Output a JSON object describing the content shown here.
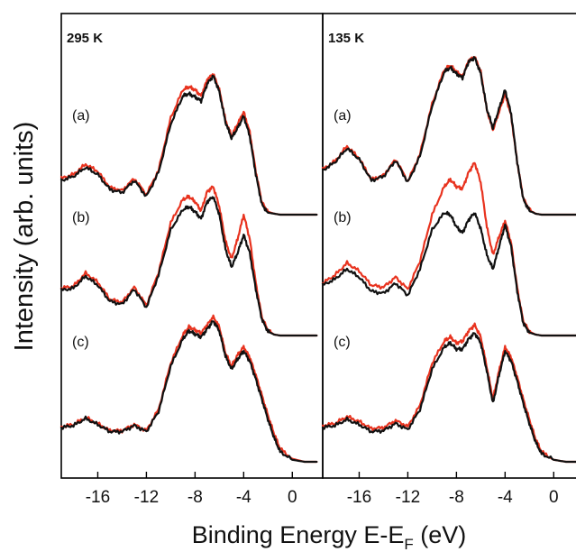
{
  "figure": {
    "ylabel": "Intensity (arb. units)",
    "xlabel_main": "Binding Energy E-E",
    "xlabel_sub": "F",
    "xlabel_tail": " (eV)"
  },
  "colors": {
    "black_trace": "#111111",
    "red_trace": "#e8331f",
    "frame": "#000000"
  },
  "chart_data": [
    {
      "type": "line",
      "panel": "left",
      "temperature_label": "295 K",
      "xlim": [
        -19,
        2.5
      ],
      "xticks": [
        -16,
        -12,
        -8,
        -4,
        0
      ],
      "xtick_labels": [
        "-16",
        "-12",
        "-8",
        "-4",
        "0"
      ],
      "x_inverted": false,
      "y_ticks_shown": false,
      "spectra": [
        {
          "label": "(a)",
          "base": 0.0,
          "x": [
            -19,
            -18,
            -17,
            -16,
            -15,
            -14,
            -13,
            -12,
            -11,
            -10,
            -9,
            -8.5,
            -8,
            -7.5,
            -7,
            -6.5,
            -6,
            -5.5,
            -5,
            -4.5,
            -4,
            -3.5,
            -3,
            -2.5,
            -2,
            -1.5,
            -1,
            0,
            1,
            2
          ],
          "black": [
            0.34,
            0.38,
            0.47,
            0.4,
            0.25,
            0.22,
            0.34,
            0.18,
            0.42,
            0.9,
            1.18,
            1.2,
            1.17,
            1.13,
            1.3,
            1.38,
            1.22,
            0.92,
            0.76,
            0.86,
            0.98,
            0.78,
            0.4,
            0.1,
            0.02,
            0.01,
            0.0,
            0.0,
            0.0,
            0.0
          ],
          "red": [
            0.36,
            0.4,
            0.5,
            0.43,
            0.27,
            0.24,
            0.36,
            0.2,
            0.44,
            0.96,
            1.24,
            1.27,
            1.24,
            1.18,
            1.34,
            1.4,
            1.24,
            0.94,
            0.78,
            0.9,
            1.02,
            0.82,
            0.43,
            0.12,
            0.03,
            0.01,
            0.0,
            0.0,
            0.0,
            0.0
          ]
        },
        {
          "label": "(b)",
          "base": 0.0,
          "x": [
            -19,
            -18,
            -17,
            -16,
            -15,
            -14,
            -13,
            -12,
            -11,
            -10,
            -9,
            -8.5,
            -8,
            -7.5,
            -7,
            -6.5,
            -6,
            -5.5,
            -5,
            -4.5,
            -4,
            -3.5,
            -3,
            -2.5,
            -2,
            -1.5,
            -1,
            0,
            1,
            2
          ],
          "black": [
            0.45,
            0.47,
            0.59,
            0.5,
            0.34,
            0.31,
            0.46,
            0.28,
            0.6,
            1.05,
            1.25,
            1.28,
            1.23,
            1.16,
            1.33,
            1.38,
            1.2,
            0.86,
            0.68,
            0.82,
            1.0,
            0.82,
            0.46,
            0.16,
            0.04,
            0.01,
            0.0,
            0.0,
            0.0,
            0.0
          ],
          "red": [
            0.47,
            0.49,
            0.62,
            0.53,
            0.36,
            0.33,
            0.48,
            0.3,
            0.63,
            1.12,
            1.35,
            1.38,
            1.33,
            1.24,
            1.43,
            1.48,
            1.28,
            0.94,
            0.76,
            0.96,
            1.2,
            0.96,
            0.52,
            0.18,
            0.05,
            0.01,
            0.0,
            0.0,
            0.0,
            0.0
          ]
        },
        {
          "label": "(c)",
          "base": 0.0,
          "x": [
            -19,
            -18,
            -17,
            -16,
            -15,
            -14,
            -13,
            -12,
            -11,
            -10,
            -9,
            -8.5,
            -8,
            -7.5,
            -7,
            -6.5,
            -6,
            -5.5,
            -5,
            -4.5,
            -4,
            -3.5,
            -3,
            -2.5,
            -2,
            -1.5,
            -1,
            0,
            1,
            2
          ],
          "black": [
            0.34,
            0.36,
            0.43,
            0.37,
            0.3,
            0.3,
            0.36,
            0.3,
            0.5,
            0.95,
            1.22,
            1.3,
            1.27,
            1.24,
            1.32,
            1.4,
            1.3,
            1.05,
            0.92,
            1.02,
            1.1,
            1.0,
            0.82,
            0.62,
            0.42,
            0.24,
            0.1,
            0.02,
            0.0,
            0.0
          ],
          "red": [
            0.35,
            0.37,
            0.44,
            0.38,
            0.31,
            0.31,
            0.37,
            0.31,
            0.52,
            0.98,
            1.26,
            1.34,
            1.31,
            1.28,
            1.36,
            1.44,
            1.34,
            1.08,
            0.95,
            1.06,
            1.14,
            1.04,
            0.86,
            0.66,
            0.46,
            0.28,
            0.13,
            0.03,
            0.0,
            0.0
          ]
        }
      ]
    },
    {
      "type": "line",
      "panel": "right",
      "temperature_label": "135 K",
      "xlim": [
        -19,
        2.5
      ],
      "xticks": [
        -16,
        -12,
        -8,
        -4,
        0
      ],
      "xtick_labels": [
        "-16",
        "-12",
        "-8",
        "-4",
        "0"
      ],
      "x_inverted": false,
      "y_ticks_shown": false,
      "spectra": [
        {
          "label": "(a)",
          "base": 0.0,
          "x": [
            -19,
            -18,
            -17,
            -16,
            -15,
            -14,
            -13,
            -12,
            -11,
            -10,
            -9,
            -8.5,
            -8,
            -7.5,
            -7,
            -6.5,
            -6,
            -5.5,
            -5,
            -4.5,
            -4,
            -3.5,
            -3,
            -2.5,
            -2,
            -1.5,
            -1,
            0,
            1,
            2
          ],
          "black": [
            0.44,
            0.52,
            0.66,
            0.55,
            0.34,
            0.38,
            0.54,
            0.32,
            0.58,
            1.08,
            1.42,
            1.46,
            1.4,
            1.36,
            1.52,
            1.56,
            1.4,
            1.05,
            0.86,
            1.05,
            1.24,
            1.0,
            0.52,
            0.15,
            0.04,
            0.01,
            0.0,
            0.0,
            0.0,
            0.0
          ],
          "red": [
            0.45,
            0.53,
            0.68,
            0.56,
            0.35,
            0.39,
            0.55,
            0.33,
            0.6,
            1.1,
            1.44,
            1.48,
            1.42,
            1.37,
            1.53,
            1.57,
            1.42,
            1.04,
            0.84,
            1.02,
            1.2,
            0.98,
            0.52,
            0.16,
            0.05,
            0.01,
            0.0,
            0.0,
            0.0,
            0.0
          ]
        },
        {
          "label": "(b)",
          "base": 0.0,
          "x": [
            -19,
            -18,
            -17,
            -16,
            -15,
            -14,
            -13,
            -12,
            -11,
            -10,
            -9,
            -8.5,
            -8,
            -7.5,
            -7,
            -6.5,
            -6,
            -5.5,
            -5,
            -4.5,
            -4,
            -3.5,
            -3,
            -2.5,
            -2,
            -1.5,
            -1,
            0,
            1,
            2
          ],
          "black": [
            0.5,
            0.56,
            0.66,
            0.58,
            0.44,
            0.42,
            0.52,
            0.4,
            0.66,
            1.05,
            1.22,
            1.2,
            1.08,
            1.02,
            1.15,
            1.22,
            1.06,
            0.8,
            0.66,
            0.88,
            1.1,
            0.88,
            0.44,
            0.12,
            0.03,
            0.01,
            0.0,
            0.0,
            0.0,
            0.0
          ],
          "red": [
            0.52,
            0.6,
            0.72,
            0.64,
            0.5,
            0.48,
            0.58,
            0.46,
            0.74,
            1.2,
            1.48,
            1.55,
            1.48,
            1.46,
            1.62,
            1.72,
            1.52,
            1.08,
            0.8,
            0.98,
            1.14,
            0.92,
            0.47,
            0.14,
            0.04,
            0.01,
            0.0,
            0.0,
            0.0,
            0.0
          ]
        },
        {
          "label": "(c)",
          "base": 0.0,
          "x": [
            -19,
            -18,
            -17,
            -16,
            -15,
            -14,
            -13,
            -12,
            -11,
            -10,
            -9,
            -8.5,
            -8,
            -7.5,
            -7,
            -6.5,
            -6,
            -5.5,
            -5,
            -4.5,
            -4,
            -3.5,
            -3,
            -2.5,
            -2,
            -1.5,
            -1,
            0,
            1,
            2
          ],
          "black": [
            0.34,
            0.36,
            0.42,
            0.37,
            0.3,
            0.31,
            0.38,
            0.32,
            0.52,
            0.92,
            1.14,
            1.18,
            1.12,
            1.12,
            1.22,
            1.28,
            1.18,
            0.9,
            0.58,
            0.86,
            1.1,
            1.0,
            0.8,
            0.58,
            0.38,
            0.2,
            0.08,
            0.02,
            0.0,
            0.0
          ],
          "red": [
            0.36,
            0.38,
            0.45,
            0.4,
            0.33,
            0.34,
            0.41,
            0.35,
            0.56,
            0.98,
            1.2,
            1.24,
            1.18,
            1.2,
            1.3,
            1.36,
            1.24,
            0.94,
            0.62,
            0.9,
            1.14,
            1.04,
            0.84,
            0.62,
            0.42,
            0.23,
            0.1,
            0.02,
            0.0,
            0.0
          ]
        }
      ]
    }
  ]
}
